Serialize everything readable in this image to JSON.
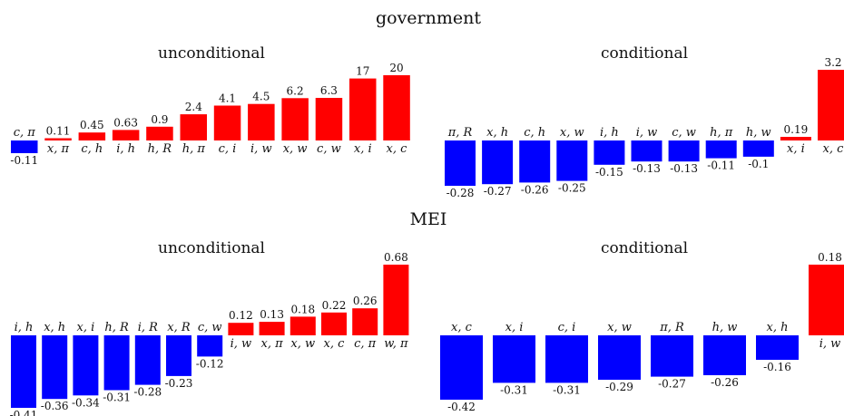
{
  "colors": {
    "positive": "#ff0000",
    "negative": "#0000ff"
  },
  "sections": [
    {
      "title": "government"
    },
    {
      "title": "MEI"
    }
  ],
  "chart_data": [
    {
      "type": "bar",
      "section": "government",
      "title": "unconditional",
      "categories": [
        "c, π",
        "x, π",
        "c, h",
        "i, h",
        "h, R",
        "h, π",
        "c, i",
        "i, w",
        "x, w",
        "c, w",
        "x, i",
        "x, c"
      ],
      "values": [
        -0.11,
        0.11,
        0.45,
        0.63,
        0.9,
        2.4,
        4.1,
        4.5,
        6.2,
        6.3,
        17,
        20
      ],
      "labels": [
        "-0.11",
        "0.11",
        "0.45",
        "0.63",
        "0.9",
        "2.4",
        "4.1",
        "4.5",
        "6.2",
        "6.3",
        "17",
        "20"
      ]
    },
    {
      "type": "bar",
      "section": "government",
      "title": "conditional",
      "categories": [
        "π, R",
        "x, h",
        "c, h",
        "x, w",
        "i, h",
        "i, w",
        "c, w",
        "h, π",
        "h, w",
        "x, i",
        "x, c"
      ],
      "values": [
        -0.28,
        -0.27,
        -0.26,
        -0.25,
        -0.15,
        -0.13,
        -0.13,
        -0.11,
        -0.1,
        0.19,
        3.2
      ],
      "labels": [
        "-0.28",
        "-0.27",
        "-0.26",
        "-0.25",
        "-0.15",
        "-0.13",
        "-0.13",
        "-0.11",
        "-0.1",
        "0.19",
        "3.2"
      ]
    },
    {
      "type": "bar",
      "section": "MEI",
      "title": "unconditional",
      "categories": [
        "i, h",
        "x, h",
        "x, i",
        "h, R",
        "i, R",
        "x, R",
        "c, w",
        "i, w",
        "x, π",
        "x, w",
        "x, c",
        "c, π",
        "w, π"
      ],
      "values": [
        -0.41,
        -0.36,
        -0.34,
        -0.31,
        -0.28,
        -0.23,
        -0.12,
        0.12,
        0.13,
        0.18,
        0.22,
        0.26,
        0.68
      ],
      "labels": [
        "-0.41",
        "-0.36",
        "-0.34",
        "-0.31",
        "-0.28",
        "-0.23",
        "-0.12",
        "0.12",
        "0.13",
        "0.18",
        "0.22",
        "0.26",
        "0.68"
      ]
    },
    {
      "type": "bar",
      "section": "MEI",
      "title": "conditional",
      "categories": [
        "x, c",
        "x, i",
        "c, i",
        "x, w",
        "π, R",
        "h, w",
        "x, h",
        "i, w"
      ],
      "values": [
        -0.42,
        -0.31,
        -0.31,
        -0.29,
        -0.27,
        -0.26,
        -0.16,
        0.18
      ],
      "labels": [
        "-0.42",
        "-0.31",
        "-0.31",
        "-0.29",
        "-0.27",
        "-0.26",
        "-0.16",
        "0.18"
      ]
    }
  ]
}
